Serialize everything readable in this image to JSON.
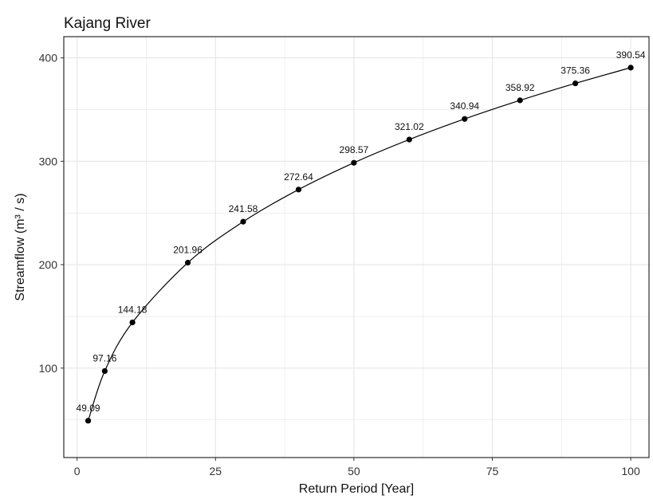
{
  "chart_data": {
    "type": "line",
    "title": "Kajang River",
    "xlabel": "Return Period [Year]",
    "ylabel": "Streamflow (m³ / s)",
    "xlim": [
      -2.4,
      103.3
    ],
    "ylim": [
      13.5,
      420.5
    ],
    "x_ticks": [
      0,
      25,
      50,
      75,
      100
    ],
    "y_ticks": [
      100,
      200,
      300,
      400
    ],
    "grid": true,
    "legend": "none",
    "series": [
      {
        "x": [
          2,
          5,
          10,
          20,
          30,
          40,
          50,
          60,
          70,
          80,
          90,
          100
        ],
        "values": [
          49.09,
          97.16,
          144.18,
          201.96,
          241.58,
          272.64,
          298.57,
          321.02,
          340.94,
          358.92,
          375.36,
          390.54
        ],
        "labels": [
          "49.09",
          "97.16",
          "144.18",
          "201.96",
          "241.58",
          "272.64",
          "298.57",
          "321.02",
          "340.94",
          "358.92",
          "375.36",
          "390.54"
        ]
      }
    ],
    "colors": {
      "line": "#000000",
      "point": "#000000",
      "grid": "#e6e6e6",
      "axis": "#000000"
    }
  }
}
